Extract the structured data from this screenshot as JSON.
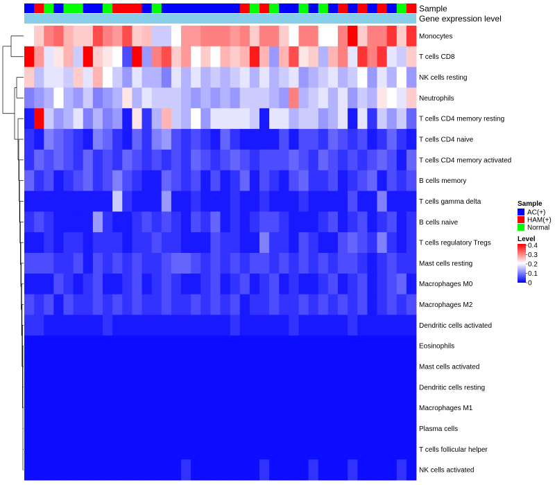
{
  "chart_data": {
    "type": "heatmap",
    "title": "",
    "annotation_tracks": [
      "Sample",
      "Gene expression level"
    ],
    "rows": [
      "Monocytes",
      "T cells CD8",
      "NK cells resting",
      "Neutrophils",
      "T cells CD4 memory resting",
      "T cells CD4 naive",
      "T cells CD4 memory activated",
      "B cells memory",
      "T cells gamma delta",
      "B cells naive",
      "T cells regulatory  Tregs",
      "Mast cells resting",
      "Macrophages M0",
      "Macrophages M2",
      "Dendritic cells activated",
      "Eosinophils",
      "Mast cells activated",
      "Dendritic cells resting",
      "Macrophages M1",
      "Plasma cells",
      "T cells follicular helper",
      "NK cells activated"
    ],
    "sample_groups": [
      "AC(+)",
      "HAM(+)",
      "Normal",
      "AC(+)",
      "Normal",
      "Normal",
      "AC(+)",
      "AC(+)",
      "Normal",
      "HAM(+)",
      "HAM(+)",
      "HAM(+)",
      "AC(+)",
      "Normal",
      "AC(+)",
      "AC(+)",
      "AC(+)",
      "AC(+)",
      "AC(+)",
      "AC(+)",
      "AC(+)",
      "AC(+)",
      "HAM(+)",
      "Normal",
      "HAM(+)",
      "Normal",
      "AC(+)",
      "AC(+)",
      "Normal",
      "AC(+)",
      "Normal",
      "AC(+)",
      "HAM(+)",
      "AC(+)",
      "HAM(+)",
      "AC(+)",
      "HAM(+)",
      "AC(+)",
      "Normal",
      "HAM(+)"
    ],
    "gene_expression_level": "uniform",
    "values": [
      [
        0.2,
        0.24,
        0.3,
        0.32,
        0.26,
        0.24,
        0.24,
        0.34,
        0.3,
        0.28,
        0.34,
        0.24,
        0.25,
        0.16,
        0.16,
        0.2,
        0.28,
        0.28,
        0.3,
        0.3,
        0.3,
        0.28,
        0.3,
        0.24,
        0.3,
        0.3,
        0.24,
        0.2,
        0.3,
        0.3,
        0.2,
        0.2,
        0.3,
        0.4,
        0.24,
        0.3,
        0.3,
        0.36,
        0.24,
        0.36
      ],
      [
        0.4,
        0.28,
        0.18,
        0.22,
        0.26,
        0.16,
        0.4,
        0.24,
        0.22,
        0.2,
        0.06,
        0.4,
        0.12,
        0.3,
        0.34,
        0.24,
        0.28,
        0.2,
        0.24,
        0.2,
        0.26,
        0.24,
        0.26,
        0.38,
        0.26,
        0.12,
        0.26,
        0.34,
        0.22,
        0.24,
        0.14,
        0.26,
        0.3,
        0.18,
        0.36,
        0.3,
        0.36,
        0.18,
        0.16,
        0.24
      ],
      [
        0.24,
        0.15,
        0.18,
        0.18,
        0.16,
        0.24,
        0.18,
        0.26,
        0.2,
        0.16,
        0.12,
        0.18,
        0.14,
        0.14,
        0.1,
        0.18,
        0.14,
        0.18,
        0.14,
        0.16,
        0.14,
        0.16,
        0.18,
        0.14,
        0.18,
        0.14,
        0.16,
        0.18,
        0.12,
        0.14,
        0.16,
        0.18,
        0.14,
        0.16,
        0.2,
        0.12,
        0.18,
        0.14,
        0.2,
        0.12
      ],
      [
        0.1,
        0.12,
        0.14,
        0.2,
        0.14,
        0.12,
        0.16,
        0.1,
        0.12,
        0.14,
        0.22,
        0.14,
        0.18,
        0.16,
        0.16,
        0.16,
        0.14,
        0.12,
        0.14,
        0.12,
        0.14,
        0.12,
        0.16,
        0.16,
        0.16,
        0.14,
        0.12,
        0.3,
        0.14,
        0.16,
        0.18,
        0.14,
        0.18,
        0.12,
        0.16,
        0.14,
        0.22,
        0.2,
        0.18,
        0.24
      ],
      [
        0.02,
        0.4,
        0.16,
        0.12,
        0.14,
        0.18,
        0.1,
        0.14,
        0.1,
        0.12,
        0.02,
        0.22,
        0.04,
        0.14,
        0.26,
        0.16,
        0.14,
        0.2,
        0.12,
        0.18,
        0.18,
        0.18,
        0.18,
        0.16,
        0.02,
        0.18,
        0.18,
        0.14,
        0.16,
        0.16,
        0.12,
        0.14,
        0.18,
        0.02,
        0.18,
        0.04,
        0.16,
        0.12,
        0.16,
        0.08
      ],
      [
        0.04,
        0.02,
        0.1,
        0.08,
        0.06,
        0.04,
        0.02,
        0.1,
        0.08,
        0.04,
        0.02,
        0.08,
        0.04,
        0.1,
        0.12,
        0.06,
        0.04,
        0.06,
        0.04,
        0.02,
        0.08,
        0.04,
        0.02,
        0.02,
        0.02,
        0.02,
        0.06,
        0.02,
        0.06,
        0.06,
        0.04,
        0.08,
        0.06,
        0.04,
        0.06,
        0.02,
        0.04,
        0.08,
        0.04,
        0.02
      ],
      [
        0.04,
        0.08,
        0.06,
        0.08,
        0.06,
        0.04,
        0.08,
        0.04,
        0.06,
        0.04,
        0.08,
        0.06,
        0.04,
        0.06,
        0.04,
        0.06,
        0.04,
        0.08,
        0.06,
        0.04,
        0.06,
        0.08,
        0.06,
        0.04,
        0.06,
        0.06,
        0.06,
        0.08,
        0.06,
        0.04,
        0.08,
        0.06,
        0.04,
        0.06,
        0.04,
        0.06,
        0.08,
        0.06,
        0.02,
        0.08
      ],
      [
        0.08,
        0.04,
        0.06,
        0.02,
        0.04,
        0.06,
        0.08,
        0.04,
        0.06,
        0.1,
        0.06,
        0.04,
        0.02,
        0.02,
        0.08,
        0.06,
        0.04,
        0.06,
        0.02,
        0.06,
        0.02,
        0.04,
        0.08,
        0.02,
        0.06,
        0.04,
        0.02,
        0.06,
        0.08,
        0.04,
        0.04,
        0.06,
        0.02,
        0.04,
        0.06,
        0.08,
        0.02,
        0.06,
        0.04,
        0.06
      ],
      [
        0.02,
        0.02,
        0.02,
        0.02,
        0.02,
        0.02,
        0.02,
        0.02,
        0.02,
        0.16,
        0.04,
        0.02,
        0.02,
        0.02,
        0.12,
        0.02,
        0.02,
        0.04,
        0.02,
        0.02,
        0.02,
        0.04,
        0.02,
        0.02,
        0.04,
        0.02,
        0.02,
        0.02,
        0.04,
        0.02,
        0.02,
        0.02,
        0.02,
        0.06,
        0.02,
        0.02,
        0.1,
        0.02,
        0.02,
        0.02
      ],
      [
        0.04,
        0.06,
        0.04,
        0.02,
        0.02,
        0.02,
        0.02,
        0.12,
        0.04,
        0.02,
        0.02,
        0.04,
        0.06,
        0.04,
        0.06,
        0.04,
        0.02,
        0.06,
        0.04,
        0.08,
        0.02,
        0.04,
        0.02,
        0.04,
        0.06,
        0.06,
        0.04,
        0.02,
        0.02,
        0.02,
        0.04,
        0.06,
        0.02,
        0.04,
        0.06,
        0.02,
        0.04,
        0.06,
        0.02,
        0.04
      ],
      [
        0.02,
        0.02,
        0.04,
        0.02,
        0.04,
        0.04,
        0.02,
        0.04,
        0.04,
        0.04,
        0.02,
        0.04,
        0.04,
        0.06,
        0.04,
        0.04,
        0.02,
        0.02,
        0.02,
        0.06,
        0.04,
        0.04,
        0.02,
        0.02,
        0.1,
        0.04,
        0.04,
        0.02,
        0.06,
        0.04,
        0.02,
        0.02,
        0.06,
        0.08,
        0.06,
        0.04,
        0.1,
        0.04,
        0.02,
        0.04
      ],
      [
        0.06,
        0.06,
        0.06,
        0.04,
        0.04,
        0.06,
        0.02,
        0.06,
        0.04,
        0.06,
        0.04,
        0.06,
        0.04,
        0.04,
        0.06,
        0.08,
        0.08,
        0.06,
        0.04,
        0.06,
        0.04,
        0.06,
        0.04,
        0.06,
        0.06,
        0.04,
        0.06,
        0.04,
        0.06,
        0.04,
        0.06,
        0.04,
        0.06,
        0.06,
        0.04,
        0.02,
        0.04,
        0.06,
        0.04,
        0.04
      ],
      [
        0.02,
        0.02,
        0.02,
        0.06,
        0.04,
        0.02,
        0.04,
        0.06,
        0.02,
        0.02,
        0.04,
        0.06,
        0.02,
        0.04,
        0.06,
        0.04,
        0.02,
        0.02,
        0.04,
        0.06,
        0.02,
        0.04,
        0.06,
        0.02,
        0.04,
        0.06,
        0.02,
        0.04,
        0.02,
        0.02,
        0.04,
        0.06,
        0.02,
        0.04,
        0.06,
        0.02,
        0.04,
        0.06,
        0.08,
        0.02
      ],
      [
        0.06,
        0.04,
        0.06,
        0.02,
        0.06,
        0.04,
        0.04,
        0.06,
        0.04,
        0.06,
        0.04,
        0.06,
        0.04,
        0.04,
        0.06,
        0.04,
        0.04,
        0.06,
        0.04,
        0.06,
        0.04,
        0.06,
        0.02,
        0.04,
        0.04,
        0.06,
        0.04,
        0.04,
        0.06,
        0.04,
        0.06,
        0.04,
        0.06,
        0.04,
        0.06,
        0.02,
        0.04,
        0.06,
        0.04,
        0.06
      ],
      [
        0.04,
        0.04,
        0.02,
        0.02,
        0.02,
        0.02,
        0.02,
        0.02,
        0.04,
        0.02,
        0.02,
        0.02,
        0.02,
        0.02,
        0.02,
        0.02,
        0.02,
        0.02,
        0.02,
        0.02,
        0.02,
        0.04,
        0.02,
        0.02,
        0.02,
        0.02,
        0.02,
        0.04,
        0.02,
        0.02,
        0.02,
        0.02,
        0.02,
        0.04,
        0.02,
        0.02,
        0.02,
        0.02,
        0.02,
        0.02
      ],
      [
        0.01,
        0.01,
        0.01,
        0.01,
        0.01,
        0.01,
        0.01,
        0.01,
        0.01,
        0.01,
        0.01,
        0.01,
        0.01,
        0.01,
        0.01,
        0.01,
        0.01,
        0.01,
        0.01,
        0.01,
        0.01,
        0.01,
        0.01,
        0.01,
        0.01,
        0.01,
        0.01,
        0.01,
        0.01,
        0.01,
        0.01,
        0.01,
        0.01,
        0.01,
        0.01,
        0.01,
        0.01,
        0.01,
        0.01,
        0.01
      ],
      [
        0.01,
        0.01,
        0.01,
        0.01,
        0.01,
        0.01,
        0.01,
        0.01,
        0.01,
        0.01,
        0.01,
        0.01,
        0.01,
        0.01,
        0.01,
        0.01,
        0.01,
        0.01,
        0.01,
        0.01,
        0.01,
        0.01,
        0.01,
        0.01,
        0.01,
        0.01,
        0.01,
        0.01,
        0.01,
        0.01,
        0.01,
        0.01,
        0.01,
        0.01,
        0.01,
        0.01,
        0.01,
        0.01,
        0.01,
        0.01
      ],
      [
        0.01,
        0.01,
        0.01,
        0.01,
        0.01,
        0.01,
        0.01,
        0.01,
        0.01,
        0.01,
        0.01,
        0.01,
        0.01,
        0.01,
        0.01,
        0.01,
        0.01,
        0.01,
        0.01,
        0.01,
        0.01,
        0.01,
        0.01,
        0.01,
        0.01,
        0.01,
        0.01,
        0.01,
        0.01,
        0.01,
        0.01,
        0.01,
        0.01,
        0.01,
        0.01,
        0.01,
        0.01,
        0.01,
        0.01,
        0.01
      ],
      [
        0.01,
        0.01,
        0.01,
        0.01,
        0.01,
        0.01,
        0.01,
        0.01,
        0.01,
        0.01,
        0.01,
        0.01,
        0.01,
        0.01,
        0.01,
        0.01,
        0.01,
        0.01,
        0.01,
        0.01,
        0.01,
        0.01,
        0.01,
        0.01,
        0.01,
        0.01,
        0.01,
        0.01,
        0.01,
        0.01,
        0.01,
        0.01,
        0.01,
        0.01,
        0.01,
        0.01,
        0.01,
        0.01,
        0.01,
        0.01
      ],
      [
        0.01,
        0.01,
        0.01,
        0.01,
        0.01,
        0.01,
        0.01,
        0.01,
        0.01,
        0.01,
        0.01,
        0.01,
        0.01,
        0.01,
        0.01,
        0.01,
        0.01,
        0.01,
        0.01,
        0.01,
        0.01,
        0.01,
        0.01,
        0.01,
        0.01,
        0.01,
        0.01,
        0.01,
        0.01,
        0.01,
        0.01,
        0.01,
        0.01,
        0.01,
        0.01,
        0.01,
        0.01,
        0.01,
        0.01,
        0.01
      ],
      [
        0.01,
        0.01,
        0.01,
        0.01,
        0.01,
        0.01,
        0.01,
        0.01,
        0.01,
        0.01,
        0.01,
        0.01,
        0.01,
        0.01,
        0.01,
        0.01,
        0.01,
        0.01,
        0.01,
        0.01,
        0.01,
        0.01,
        0.01,
        0.01,
        0.01,
        0.01,
        0.01,
        0.01,
        0.01,
        0.01,
        0.01,
        0.01,
        0.01,
        0.01,
        0.01,
        0.01,
        0.01,
        0.01,
        0.01,
        0.01
      ],
      [
        0.01,
        0.01,
        0.01,
        0.01,
        0.01,
        0.01,
        0.01,
        0.01,
        0.01,
        0.01,
        0.01,
        0.01,
        0.01,
        0.01,
        0.01,
        0.01,
        0.04,
        0.01,
        0.01,
        0.01,
        0.01,
        0.01,
        0.01,
        0.01,
        0.04,
        0.01,
        0.01,
        0.01,
        0.01,
        0.04,
        0.01,
        0.01,
        0.01,
        0.04,
        0.01,
        0.01,
        0.01,
        0.01,
        0.04,
        0.01
      ]
    ],
    "color_scale": {
      "min": 0,
      "mid": 0.2,
      "max": 0.4,
      "low": "#0000ff",
      "midcolor": "#ffffff",
      "high": "#ff0000"
    },
    "legend": {
      "sample_title": "Sample",
      "sample_entries": [
        {
          "label": "AC(+)",
          "color": "#0000ff"
        },
        {
          "label": "HAM(+)",
          "color": "#ff0000"
        },
        {
          "label": "Normal",
          "color": "#00ff00"
        }
      ],
      "level_title": "Level",
      "level_ticks": [
        "0.4",
        "0.3",
        "0.2",
        "0.1",
        "0"
      ],
      "placement": "right"
    },
    "gene_expression_color": "#87ceeb",
    "dendrogram": "rows"
  }
}
